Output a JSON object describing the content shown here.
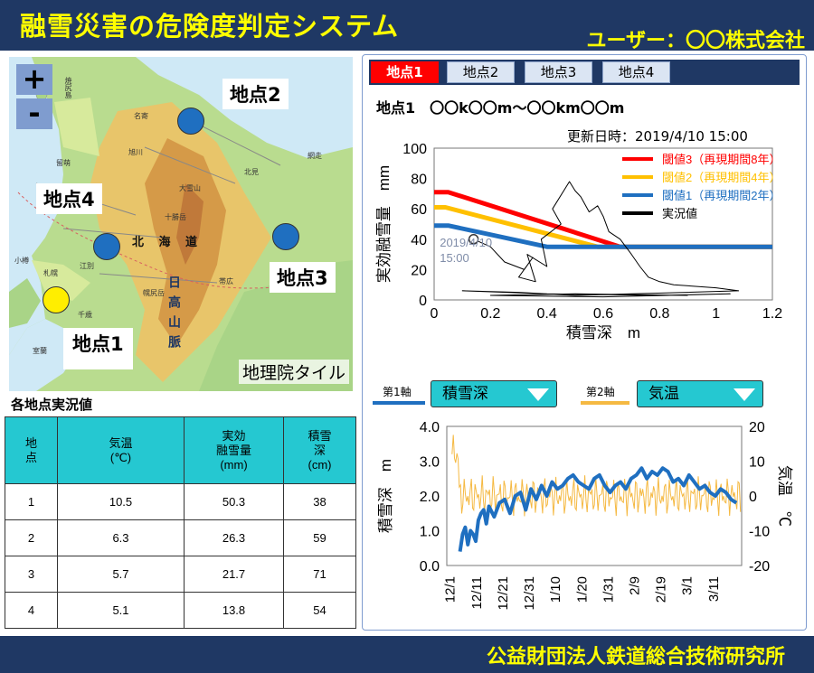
{
  "header": {
    "title": "融雪災害の危険度判定システム",
    "user": "ユーザー：〇〇株式会社"
  },
  "footer": {
    "organization": "公益財団法人鉄道総合技術研究所"
  },
  "map": {
    "zoom_in": "+",
    "zoom_out": "-",
    "credit": "地理院タイル",
    "sites": [
      {
        "label": "地点1",
        "color": "#ffee00"
      },
      {
        "label": "地点2",
        "color": "#1f6fc0"
      },
      {
        "label": "地点3",
        "color": "#1f6fc0"
      },
      {
        "label": "地点4",
        "color": "#1f6fc0"
      }
    ],
    "places": {
      "region": "北 海 道",
      "hidaka": "日高山脈",
      "mountain1": "大雪山",
      "mountain2": "十勝岳",
      "mountain3": "幌尻岳",
      "asahikawa": "旭川",
      "sapporo": "札幌",
      "ebetsu": "江別",
      "obihiro": "帯広",
      "kitami": "北見",
      "abashiri": "網走",
      "rumoi": "留萌",
      "nayoro": "名寄",
      "muroran": "室蘭",
      "otaru": "小樽",
      "chitose": "千歳",
      "rishiri": "焼尻島"
    }
  },
  "table": {
    "title": "各地点実況値",
    "headers": [
      "地\n点",
      "気温\n(℃)",
      "実効\n融雪量\n(mm)",
      "積雪\n深\n(cm)"
    ],
    "rows": [
      [
        "1",
        "10.5",
        "50.3",
        "38"
      ],
      [
        "2",
        "6.3",
        "26.3",
        "59"
      ],
      [
        "3",
        "5.7",
        "21.7",
        "71"
      ],
      [
        "4",
        "5.1",
        "13.8",
        "54"
      ]
    ]
  },
  "panel": {
    "tabs": [
      "地点1",
      "地点2",
      "地点3",
      "地点4"
    ],
    "active_tab": 0,
    "site_heading": "地点1　〇〇k〇〇m〜〇〇km〇〇m",
    "updated": "更新日時：2019/4/10 15:00",
    "axis1_label": "第1軸",
    "axis1_value": "積雪深",
    "axis1_color": "#1f6fc0",
    "axis2_label": "第2軸",
    "axis2_value": "気温",
    "axis2_color": "#f5b942"
  },
  "chart_data": [
    {
      "type": "line",
      "xlabel": "積雪深　m",
      "ylabel": "実効融雪量　mm",
      "xlim": [
        0,
        1.2
      ],
      "ylim": [
        0,
        100
      ],
      "xticks": [
        "0",
        "0.2",
        "0.4",
        "0.6",
        "0.8",
        "1",
        "1.2"
      ],
      "yticks": [
        "0",
        "20",
        "40",
        "60",
        "80",
        "100"
      ],
      "current_point_label": [
        "2019/4/10",
        "15:00"
      ],
      "current_point": {
        "x": 0.14,
        "y": 40
      },
      "series": [
        {
          "name": "閾値3（再現期間8年）",
          "color": "#ff0000",
          "x": [
            0,
            0.05,
            0.66,
            1.2
          ],
          "y": [
            71,
            71,
            35,
            35
          ]
        },
        {
          "name": "閾値2（再現期間4年）",
          "color": "#ffc000",
          "x": [
            0,
            0.04,
            0.58,
            1.2
          ],
          "y": [
            61,
            61,
            35,
            35
          ]
        },
        {
          "name": "閾値1（再現期間2年）",
          "color": "#1f6fc0",
          "x": [
            0,
            0.05,
            0.4,
            1.2
          ],
          "y": [
            49,
            49,
            35,
            35
          ]
        },
        {
          "name": "実況値",
          "color": "#000000",
          "x": [
            0.14,
            0.2,
            0.25,
            0.32,
            0.35,
            0.3,
            0.36,
            0.33,
            0.4,
            0.38,
            0.45,
            0.42,
            0.48,
            0.5,
            0.52,
            0.55,
            0.58,
            0.6,
            0.62,
            0.66,
            0.7,
            0.73,
            0.76,
            0.8,
            0.85,
            1.0,
            1.08,
            0.9,
            0.7,
            0.5,
            0.3,
            0.1,
            0.4,
            0.8,
            1.05,
            0.6,
            0.2,
            0.5,
            0.9
          ],
          "y": [
            40,
            35,
            25,
            20,
            28,
            15,
            12,
            30,
            22,
            40,
            50,
            60,
            78,
            72,
            68,
            58,
            62,
            55,
            45,
            40,
            30,
            22,
            15,
            12,
            10,
            8,
            6,
            5,
            4,
            3,
            5,
            6,
            4,
            3,
            4,
            2,
            3,
            4,
            3
          ]
        }
      ]
    },
    {
      "type": "line",
      "ylabel": "積雪深　m",
      "y2label": "気温　℃",
      "ylim": [
        0,
        4
      ],
      "y2lim": [
        -20,
        20
      ],
      "yticks": [
        "0.0",
        "1.0",
        "2.0",
        "3.0",
        "4.0"
      ],
      "y2ticks": [
        "-20",
        "-10",
        "0",
        "10",
        "20"
      ],
      "xticks": [
        "12/1",
        "12/11",
        "12/21",
        "12/31",
        "1/10",
        "1/20",
        "1/31",
        "2/9",
        "2/19",
        "3/1",
        "3/11"
      ],
      "series": [
        {
          "name": "積雪深",
          "axis": "y1",
          "color": "#1f6fc0",
          "x": [
            5,
            6,
            7,
            8,
            9,
            10,
            11,
            12,
            13,
            14,
            15,
            16,
            18,
            20,
            22,
            24,
            26,
            28,
            30,
            32,
            34,
            36,
            38,
            40,
            42,
            44,
            46,
            48,
            50,
            52,
            54,
            56,
            58,
            60,
            62,
            64,
            66,
            68,
            70,
            72,
            74,
            76,
            78,
            80,
            82,
            84,
            86,
            88,
            90,
            92,
            94,
            96,
            98,
            100,
            102,
            104,
            106,
            108,
            110
          ],
          "y": [
            0.4,
            0.9,
            1.1,
            0.6,
            1.0,
            0.9,
            0.7,
            1.3,
            1.5,
            1.6,
            1.2,
            1.7,
            1.4,
            1.8,
            1.9,
            1.5,
            2.0,
            2.1,
            1.6,
            2.2,
            1.9,
            2.3,
            2.0,
            2.4,
            2.2,
            2.3,
            2.5,
            2.6,
            2.4,
            2.3,
            2.2,
            2.5,
            2.6,
            2.3,
            2.1,
            2.3,
            2.4,
            2.2,
            2.5,
            2.6,
            2.8,
            2.5,
            2.7,
            2.6,
            2.8,
            2.7,
            2.4,
            2.5,
            2.3,
            2.6,
            2.4,
            2.2,
            2.3,
            2.1,
            2.0,
            2.2,
            2.1,
            1.9,
            1.8
          ]
        },
        {
          "name": "気温",
          "axis": "y2",
          "color": "#f5b942",
          "base": 0,
          "amplitude": 6,
          "count": 240
        }
      ]
    }
  ]
}
